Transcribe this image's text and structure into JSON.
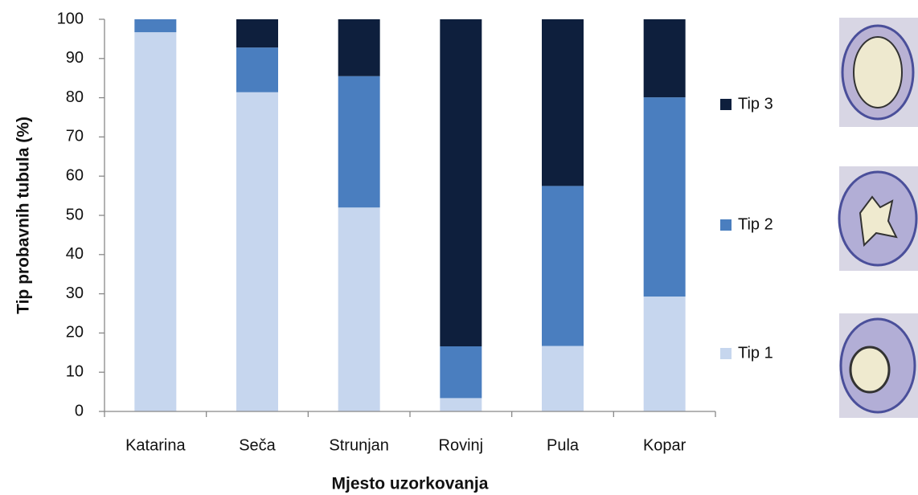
{
  "chart_data": {
    "type": "stacked_bar",
    "x_label": "Mjesto uzorkovanja",
    "y_label": "Tip probavnih tubula (%)",
    "categories": [
      "Katarina",
      "Seča",
      "Strunjan",
      "Rovinj",
      "Pula",
      "Kopar"
    ],
    "series": [
      {
        "name": "Tip 1",
        "color": "#c6d6ee",
        "values": [
          96.7,
          81.4,
          52,
          3.4,
          16.7,
          29.3
        ]
      },
      {
        "name": "Tip 2",
        "color": "#4a7ebf",
        "values": [
          3.3,
          11.4,
          33.5,
          13.2,
          40.8,
          50.8
        ]
      },
      {
        "name": "Tip 3",
        "color": "#0e1f3d",
        "values": [
          0,
          7.2,
          14.5,
          83.4,
          42.5,
          19.9
        ]
      }
    ],
    "ylim": [
      0,
      100
    ],
    "yticks": [
      0,
      10,
      20,
      30,
      40,
      50,
      60,
      70,
      80,
      90,
      100
    ],
    "grid": false
  }
}
